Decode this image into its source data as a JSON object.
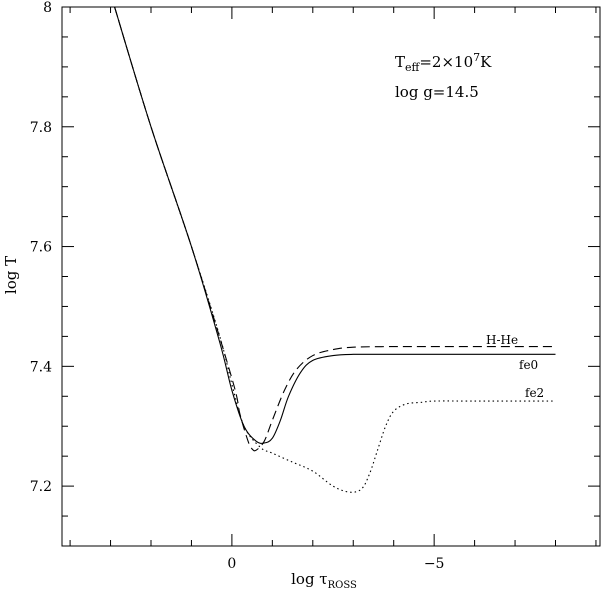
{
  "chart_data": {
    "type": "line",
    "title": "",
    "xlabel": {
      "base": "log τ",
      "sub": "ROSS"
    },
    "ylabel": "log T",
    "x_axis_reversed": true,
    "xlim": [
      4.2,
      -9.1
    ],
    "ylim": [
      7.1,
      8.0
    ],
    "x_ticks": [
      0,
      -5
    ],
    "x_tick_labels": [
      "0",
      "−5"
    ],
    "y_ticks": [
      7.2,
      7.4,
      7.6,
      7.8,
      8.0
    ],
    "y_tick_labels": [
      "7.2",
      "7.4",
      "7.6",
      "7.8",
      "8"
    ],
    "grid": false,
    "annotations": {
      "teff": {
        "base": "T",
        "sub": "eff",
        "rest": "=2×10",
        "sup": "7",
        "unit": "K"
      },
      "logg": "log g=14.5"
    },
    "series": [
      {
        "name": "H-He",
        "style": "dashed",
        "x": [
          2.9,
          2.0,
          1.0,
          0.0,
          -0.2,
          -0.4,
          -0.5,
          -0.6,
          -0.8,
          -1.0,
          -1.3,
          -1.6,
          -2.0,
          -2.5,
          -3.0,
          -4.0,
          -5.0,
          -6.0,
          -7.0,
          -8.0
        ],
        "y": [
          8.0,
          7.8,
          7.6,
          7.38,
          7.32,
          7.275,
          7.262,
          7.26,
          7.275,
          7.31,
          7.36,
          7.395,
          7.418,
          7.428,
          7.432,
          7.433,
          7.433,
          7.433,
          7.433,
          7.433
        ]
      },
      {
        "name": "fe0",
        "style": "solid",
        "x": [
          2.9,
          2.0,
          1.0,
          0.3,
          0.0,
          -0.3,
          -0.6,
          -0.8,
          -1.0,
          -1.2,
          -1.4,
          -1.7,
          -2.0,
          -2.5,
          -3.0,
          -4.0,
          -5.0,
          -6.0,
          -7.0,
          -8.0
        ],
        "y": [
          8.0,
          7.8,
          7.6,
          7.44,
          7.36,
          7.3,
          7.275,
          7.272,
          7.28,
          7.31,
          7.35,
          7.39,
          7.41,
          7.418,
          7.42,
          7.42,
          7.42,
          7.42,
          7.42,
          7.42
        ]
      },
      {
        "name": "fe2",
        "style": "dotted",
        "x": [
          2.9,
          2.0,
          1.0,
          0.3,
          0.0,
          -0.3,
          -0.7,
          -1.0,
          -1.5,
          -2.0,
          -2.5,
          -2.9,
          -3.2,
          -3.4,
          -3.6,
          -3.8,
          -4.0,
          -4.3,
          -4.7,
          -5.0,
          -6.0,
          -7.0,
          -8.0
        ],
        "y": [
          8.0,
          7.8,
          7.6,
          7.45,
          7.37,
          7.3,
          7.265,
          7.255,
          7.24,
          7.225,
          7.2,
          7.19,
          7.195,
          7.22,
          7.26,
          7.3,
          7.325,
          7.337,
          7.34,
          7.342,
          7.342,
          7.342,
          7.342
        ]
      }
    ]
  }
}
